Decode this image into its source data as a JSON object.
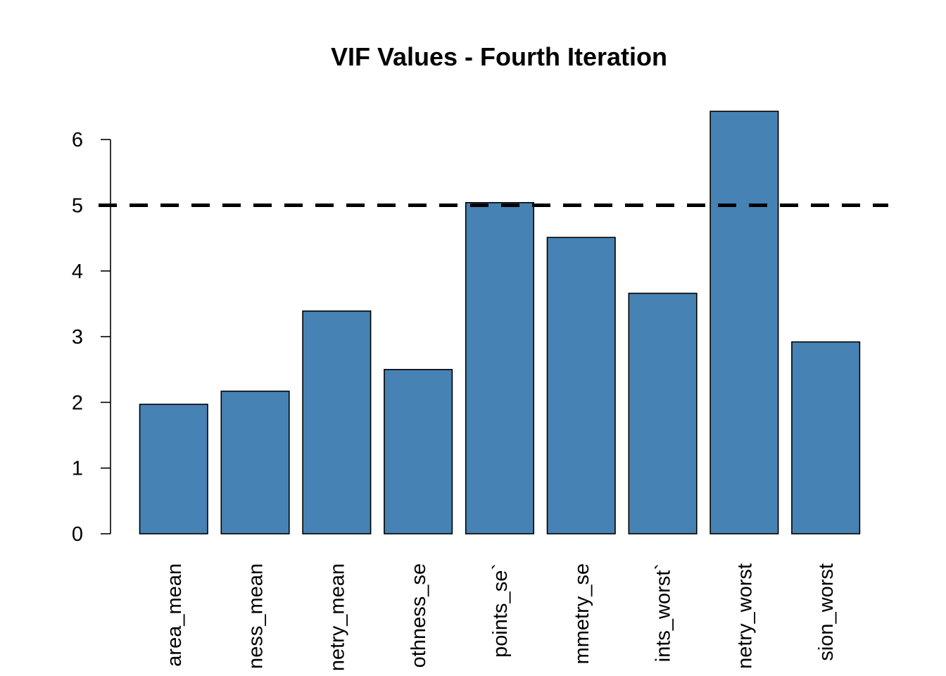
{
  "chart_data": {
    "type": "bar",
    "title": "VIF Values - Fourth Iteration",
    "xlabel": "",
    "ylabel": "",
    "categories": [
      "area_mean",
      "ness_mean",
      "netry_mean",
      "othness_se",
      "points_se`",
      "mmetry_se",
      "ints_worst`",
      "netry_worst",
      "sion_worst"
    ],
    "values": [
      1.97,
      2.17,
      3.39,
      2.5,
      5.04,
      4.51,
      3.66,
      6.43,
      2.92
    ],
    "ylim": [
      0,
      6
    ],
    "yticks": [
      "0",
      "1",
      "2",
      "3",
      "4",
      "5",
      "6"
    ],
    "reference_line": {
      "value": 5,
      "style": "dashed",
      "color": "#000000"
    },
    "bar_color": "#4682B4",
    "bar_border_color": "#000000",
    "grid": false,
    "legend": "none"
  }
}
